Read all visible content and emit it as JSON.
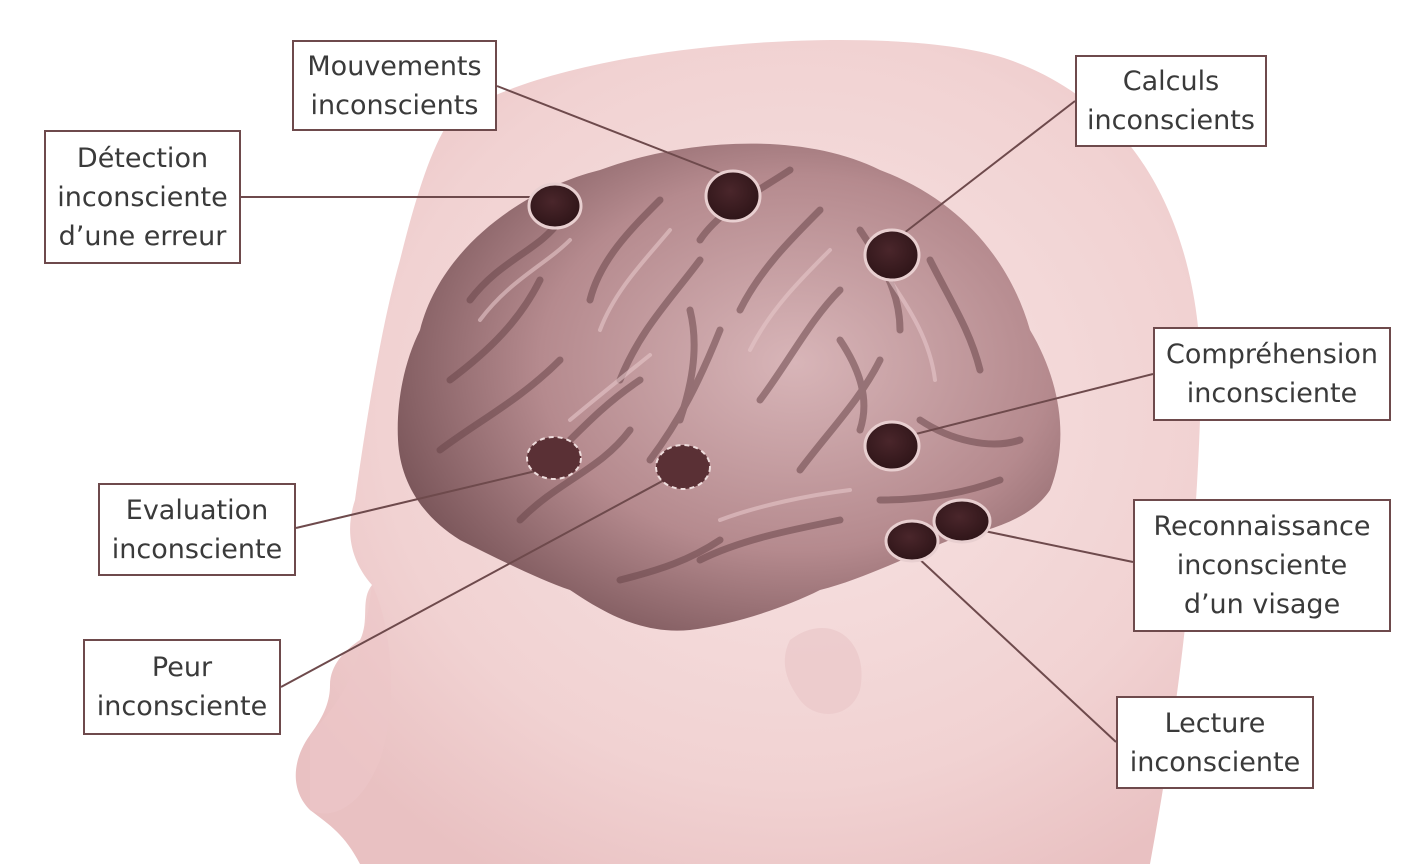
{
  "labels": {
    "mouvements": [
      "Mouvements",
      "inconscients"
    ],
    "detection": [
      "Détection",
      "inconsciente",
      "d’une erreur"
    ],
    "calculs": [
      "Calculs",
      "inconscients"
    ],
    "comprehension": [
      "Compréhension",
      "inconsciente"
    ],
    "evaluation": [
      "Evaluation",
      "inconsciente"
    ],
    "reconnaissance": [
      "Reconnaissance",
      "inconsciente",
      "d’un visage"
    ],
    "peur": [
      "Peur",
      "inconsciente"
    ],
    "lecture": [
      "Lecture",
      "inconsciente"
    ]
  },
  "colors": {
    "head": "#f3d6d6",
    "brain": "#b58a8e",
    "brain_dark": "#7e5a5e",
    "spot": "#3a1c20",
    "leader": "#6e4a4c",
    "label_border": "#6e4a4c"
  }
}
